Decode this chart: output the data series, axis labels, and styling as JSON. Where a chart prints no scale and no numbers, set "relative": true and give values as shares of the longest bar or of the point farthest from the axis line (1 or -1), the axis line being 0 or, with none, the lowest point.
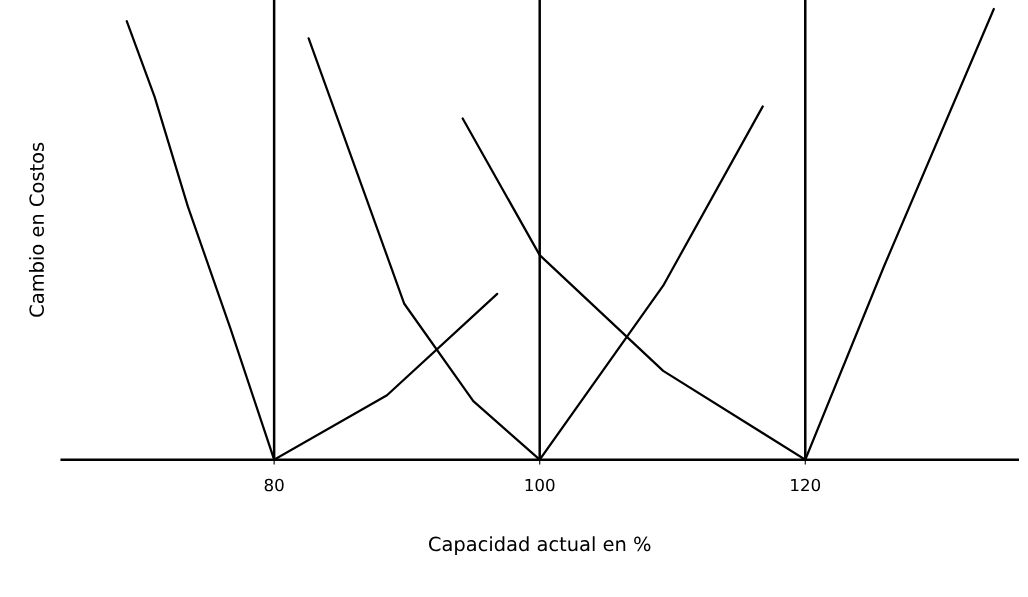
{
  "chart_data": {
    "type": "line",
    "relative": true,
    "xlabel": "Capacidad actual en %",
    "ylabel": "Cambio en Costos",
    "xlim": [
      64,
      136
    ],
    "xticks": [
      80,
      100,
      120
    ],
    "legend": false,
    "marker": "none",
    "line_style": "solid",
    "ref_lines": [
      {
        "axis": "x",
        "value": 80,
        "color": "#000000"
      },
      {
        "axis": "x",
        "value": 100,
        "color": "#000000"
      },
      {
        "axis": "x",
        "value": 120,
        "color": "#000000"
      }
    ],
    "series": [
      {
        "color": "#000000",
        "x": [
          68.9,
          71.0,
          73.5,
          76.7,
          80
        ],
        "values": [
          0.973,
          0.805,
          0.562,
          0.292,
          0
        ]
      },
      {
        "color": "#000000",
        "x": [
          80,
          88.5,
          96.8
        ],
        "values": [
          0,
          0.143,
          0.368
        ]
      },
      {
        "color": "#000000",
        "x": [
          82.6,
          89.8,
          95.0,
          100
        ],
        "values": [
          0.935,
          0.346,
          0.13,
          0
        ]
      },
      {
        "color": "#000000",
        "x": [
          94.2,
          100,
          109.3,
          120
        ],
        "values": [
          0.757,
          0.454,
          0.197,
          0
        ]
      },
      {
        "color": "#000000",
        "x": [
          100,
          109.3,
          116.8
        ],
        "values": [
          0,
          0.386,
          0.784
        ]
      },
      {
        "color": "#000000",
        "x": [
          120,
          125.9,
          134.2
        ],
        "values": [
          0,
          0.427,
          1.0
        ]
      }
    ]
  }
}
